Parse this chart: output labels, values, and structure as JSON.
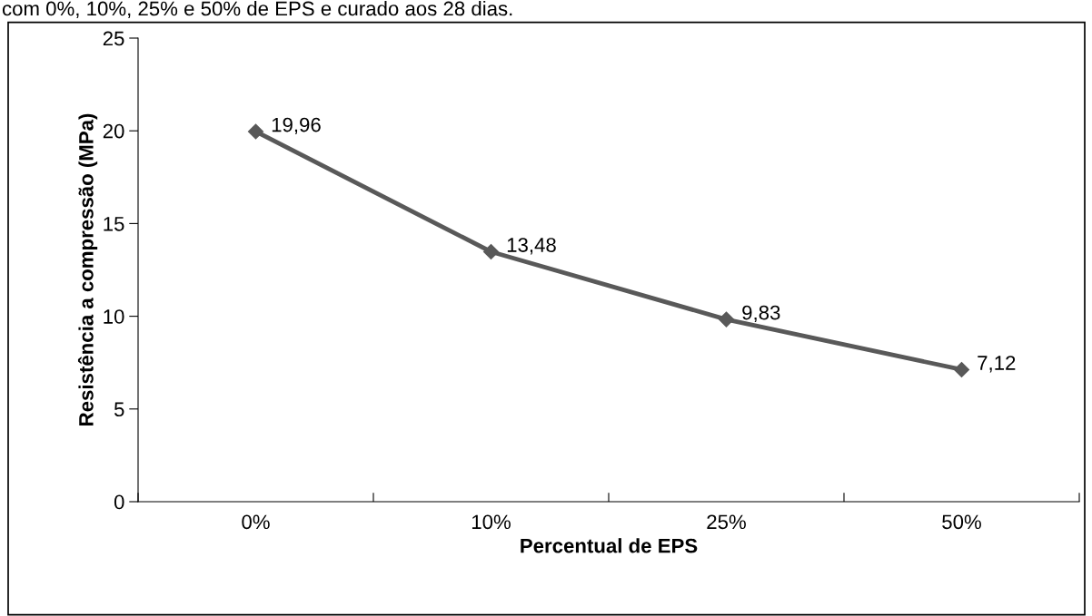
{
  "chart_data": {
    "type": "line",
    "title": "com 0%, 10%, 25% e 50% de EPS e curado aos 28 dias.",
    "xlabel": "Percentual de EPS",
    "ylabel": "Resistência a compressão (MPa)",
    "categories": [
      "0%",
      "10%",
      "25%",
      "50%"
    ],
    "series": [
      {
        "color": "#595959",
        "values": [
          19.96,
          13.48,
          9.83,
          7.12
        ],
        "value_labels": [
          "19,96",
          "13,48",
          "9,83",
          "7,12"
        ]
      }
    ],
    "marker": "diamond",
    "line_style": "solid",
    "grid": false,
    "legend": false,
    "ylim": [
      0,
      25
    ],
    "yticks": [
      0,
      5,
      10,
      15,
      20,
      25
    ]
  }
}
